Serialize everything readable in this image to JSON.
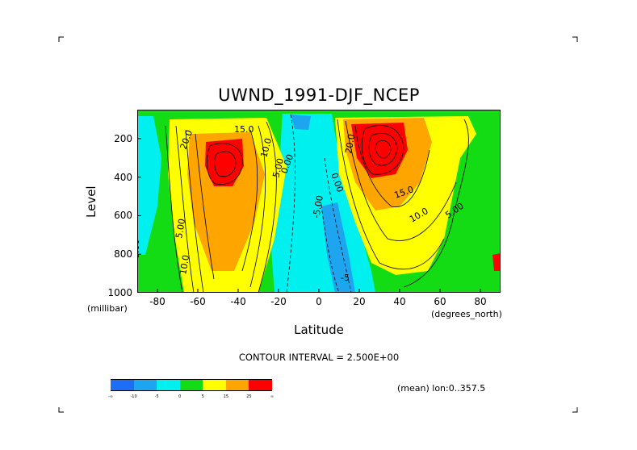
{
  "chart_data": {
    "type": "heatmap",
    "title": "UWND_1991-DJF_NCEP",
    "xlabel": "Latitude",
    "xunit": "(degrees_north)",
    "ylabel": "Level",
    "yunit": "(millibar)",
    "x_ticks": [
      "-80",
      "-60",
      "-40",
      "-20",
      "0",
      "20",
      "40",
      "60",
      "80"
    ],
    "x_tick_values": [
      -80,
      -60,
      -40,
      -20,
      0,
      20,
      40,
      60,
      80
    ],
    "y_ticks": [
      "200",
      "400",
      "600",
      "800",
      "1000"
    ],
    "y_tick_values": [
      200,
      400,
      600,
      800,
      1000
    ],
    "xlim": [
      -90,
      90
    ],
    "ylim": [
      1000,
      50
    ],
    "contour_interval_text": "CONTOUR INTERVAL = 2.500E+00",
    "mean_text": "(mean) lon:0..357.5",
    "contour_labels": [
      "15.0",
      "20.0",
      "10.0",
      "5.00",
      "0.00",
      "0.00",
      "-5.00",
      "20.0",
      "15.0",
      "10.0",
      "5.00",
      "5.00",
      "10.0",
      "0.00",
      "-5"
    ],
    "colorbar": {
      "colors": [
        "#1e6ef5",
        "#1ea5f0",
        "#00f0f0",
        "#14dc14",
        "#ffff00",
        "#ffa500",
        "#ff0000"
      ],
      "labels": [
        "-∞",
        "-10",
        "-5",
        "0",
        "5",
        "15",
        "25",
        "∞"
      ]
    },
    "jets": [
      {
        "lat": -48,
        "level": 250,
        "max": 30
      },
      {
        "lat": 30,
        "level": 200,
        "max": 40
      }
    ]
  }
}
